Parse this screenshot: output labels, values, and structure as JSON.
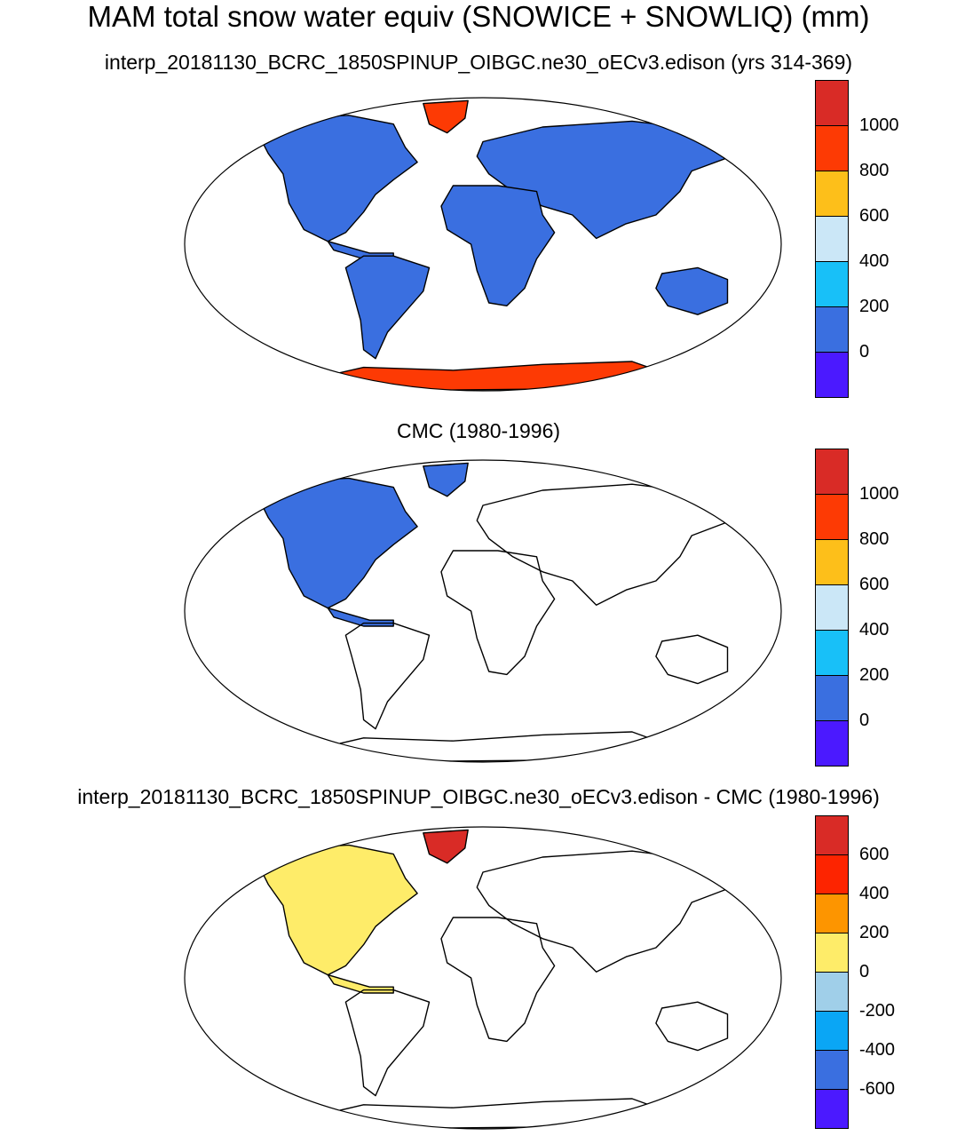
{
  "title": "MAM total snow water equiv (SNOWICE + SNOWLIQ) (mm)",
  "panels": [
    {
      "subtitle": "interp_20181130_BCRC_1850SPINUP_OIBGC.ne30_oECv3.edison (yrs 314-369)",
      "colorbar": {
        "colors": [
          "#4b19ff",
          "#3a6fe0",
          "#18c0f8",
          "#cbe7f7",
          "#fdbf1a",
          "#fd3a04",
          "#d92b26"
        ],
        "labels": [
          "0",
          "200",
          "400",
          "600",
          "800",
          "1000"
        ]
      }
    },
    {
      "subtitle": "CMC (1980-1996)",
      "colorbar": {
        "colors": [
          "#4b19ff",
          "#3a6fe0",
          "#18c0f8",
          "#cbe7f7",
          "#fdbf1a",
          "#fd3a04",
          "#d92b26"
        ],
        "labels": [
          "0",
          "200",
          "400",
          "600",
          "800",
          "1000"
        ]
      }
    },
    {
      "subtitle": "interp_20181130_BCRC_1850SPINUP_OIBGC.ne30_oECv3.edison - CMC (1980-1996)",
      "colorbar": {
        "colors": [
          "#4b19ff",
          "#3a6fe0",
          "#0aa6f5",
          "#a0cfe9",
          "#feec69",
          "#fd9500",
          "#fd2400",
          "#d92b26"
        ],
        "labels": [
          "-600",
          "-400",
          "-200",
          "0",
          "200",
          "400",
          "600"
        ]
      }
    }
  ]
}
